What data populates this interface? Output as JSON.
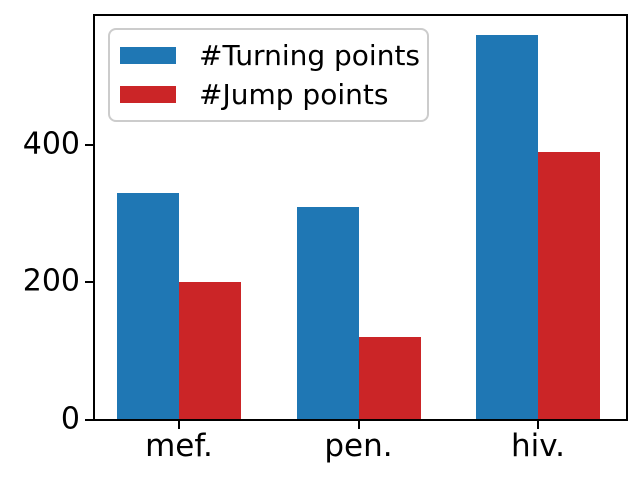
{
  "chart_data": {
    "type": "bar",
    "title": "",
    "xlabel": "",
    "ylabel": "",
    "categories": [
      "mef.",
      "pen.",
      "hiv."
    ],
    "series": [
      {
        "name": "#Turning points",
        "color": "#1f77b4",
        "values": [
          330,
          310,
          560
        ]
      },
      {
        "name": "#Jump points",
        "color": "#cb2527",
        "values": [
          200,
          120,
          390
        ]
      }
    ],
    "yticks": [
      0,
      200,
      400
    ],
    "ylim": [
      0,
      588
    ],
    "grid": false,
    "legend_position": "upper left",
    "bar_width": 0.35
  }
}
